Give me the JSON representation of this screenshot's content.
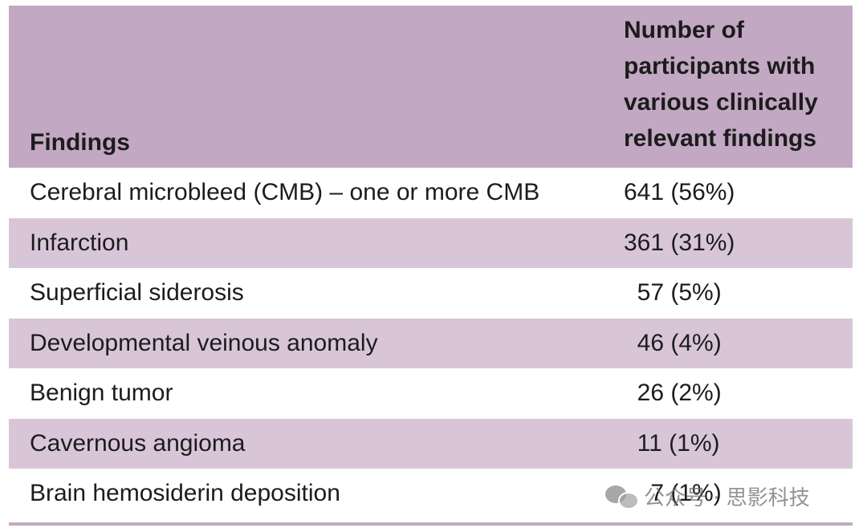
{
  "table": {
    "header": {
      "findings": "Findings",
      "number_lines": [
        "Number of",
        "participants with",
        "various clinically",
        "relevant findings"
      ]
    },
    "rows": [
      {
        "finding": "Cerebral microbleed (CMB) – one or more CMB",
        "value": "641 (56%)"
      },
      {
        "finding": "Infarction",
        "value": "361 (31%)"
      },
      {
        "finding": "Superficial siderosis",
        "value": "  57 (5%)"
      },
      {
        "finding": "Developmental veinous anomaly",
        "value": "  46 (4%)"
      },
      {
        "finding": "Benign tumor",
        "value": "  26 (2%)"
      },
      {
        "finding": "Cavernous angioma",
        "value": "  11 (1%)"
      },
      {
        "finding": "Brain hemosiderin deposition",
        "value": "    7 (1%)"
      }
    ]
  },
  "watermark": {
    "icon": "wechat-icon",
    "text": "公众号 · 思影科技"
  },
  "colors": {
    "header_bg": "#c2a8c2",
    "shaded_row_bg": "#d8c6d8"
  }
}
